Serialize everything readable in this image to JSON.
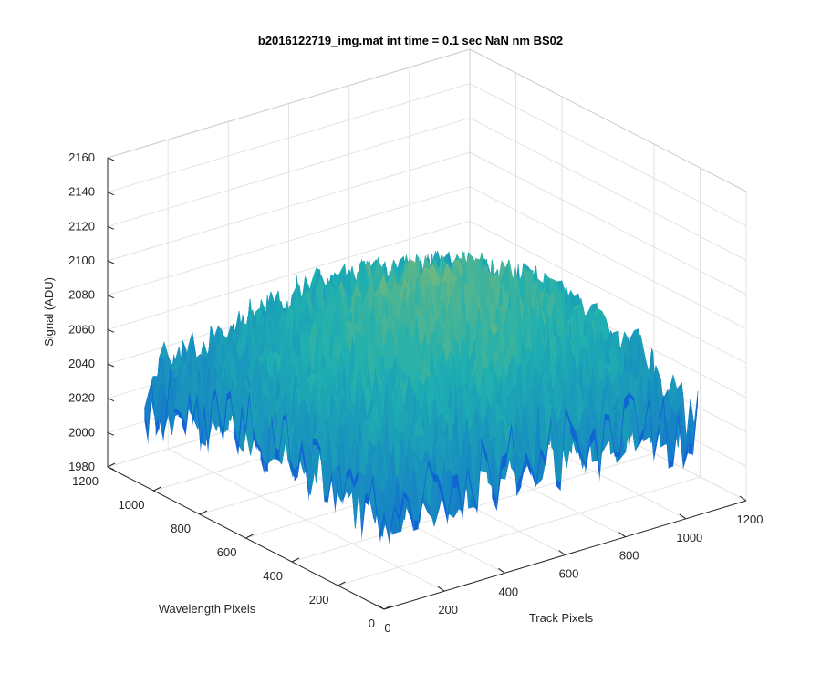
{
  "chart_data": {
    "type": "surface",
    "title": "b2016122719_img.mat int time = 0.1 sec  NaN nm BS02",
    "xlabel": "Track Pixels",
    "ylabel": "Wavelength Pixels",
    "zlabel": "Signal (ADU)",
    "xlim": [
      0,
      1200
    ],
    "ylim": [
      0,
      1200
    ],
    "zlim": [
      1980,
      2160
    ],
    "xticks": [
      "0",
      "200",
      "400",
      "600",
      "800",
      "1000",
      "1200"
    ],
    "yticks": [
      "0",
      "200",
      "400",
      "600",
      "800",
      "1000",
      "1200"
    ],
    "zticks": [
      "1980",
      "2000",
      "2020",
      "2040",
      "2060",
      "2080",
      "2100",
      "2120",
      "2140",
      "2160"
    ],
    "grid": true,
    "colormap": "parula",
    "data_extent": {
      "x": [
        0,
        1040
      ],
      "y": [
        0,
        1040
      ]
    },
    "approx_surface": {
      "description_of_trend": "Signal rises from ~2030 near the low-x/low-y corner to ~2080-2090 in the middle region, with high-frequency noise of roughly +/-25 ADU",
      "sample_grid": {
        "x": [
          0,
          208,
          416,
          624,
          832,
          1040
        ],
        "y": [
          0,
          208,
          416,
          624,
          832,
          1040
        ],
        "z": [
          [
            2030,
            2040,
            2045,
            2045,
            2040,
            2035
          ],
          [
            2040,
            2055,
            2062,
            2062,
            2055,
            2045
          ],
          [
            2045,
            2062,
            2075,
            2078,
            2068,
            2052
          ],
          [
            2045,
            2065,
            2080,
            2085,
            2072,
            2055
          ],
          [
            2040,
            2060,
            2075,
            2078,
            2065,
            2050
          ],
          [
            2032,
            2045,
            2055,
            2056,
            2050,
            2040
          ]
        ]
      }
    }
  },
  "colors": {
    "low": "#0f5fd6",
    "mid": "#1fb0b0",
    "high": "#d9c23a"
  }
}
